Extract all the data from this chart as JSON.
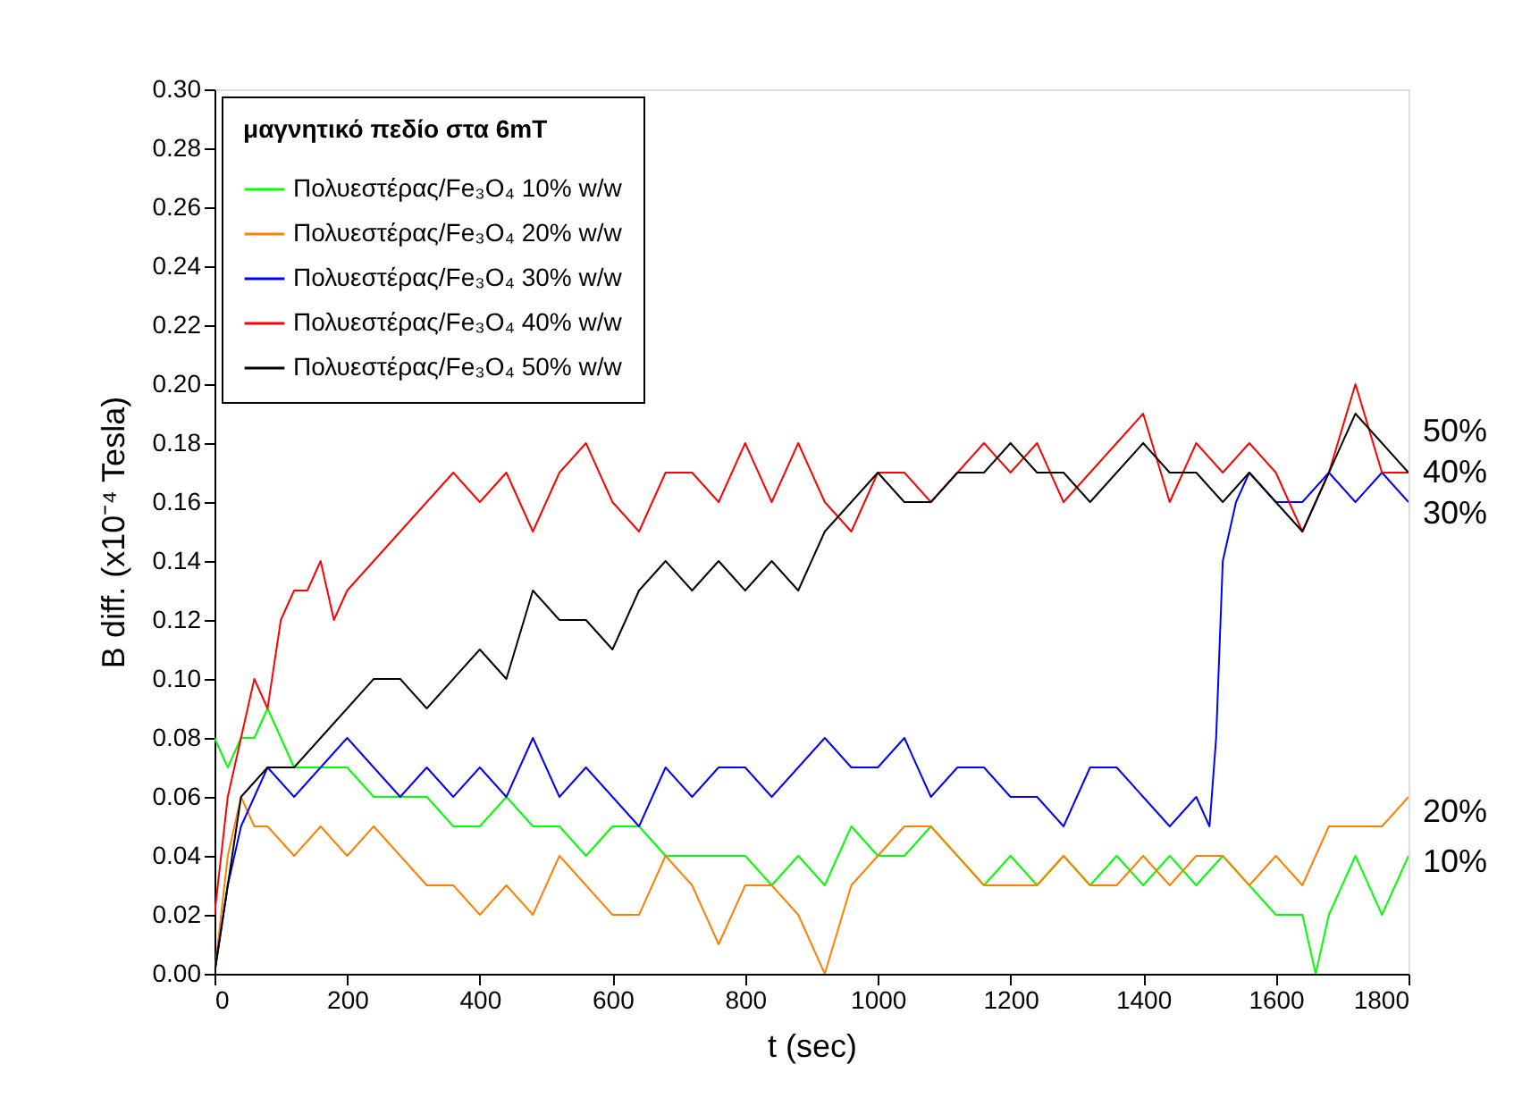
{
  "chart_data": {
    "type": "line",
    "xlabel": "t (sec)",
    "ylabel": "B diff. (x10⁻⁴ Tesla)",
    "legend_title": "μαγνητικό πεδίο στα 6mT",
    "legend": "top left",
    "grid": false,
    "line_style": "solid",
    "marker": "none",
    "xlim": [
      0,
      1800
    ],
    "xticks": [
      0,
      200,
      400,
      600,
      800,
      1000,
      1200,
      1400,
      1600,
      1800
    ],
    "ylim": [
      0,
      0.3
    ],
    "yticks": [
      {
        "value": 0,
        "label": "0.00"
      },
      {
        "value": 0.02,
        "label": "0.02"
      },
      {
        "value": 0.04,
        "label": "0.04"
      },
      {
        "value": 0.06,
        "label": "0.06"
      },
      {
        "value": 0.08,
        "label": "0.08"
      },
      {
        "value": 0.1,
        "label": "0.10"
      },
      {
        "value": 0.12,
        "label": "0.12"
      },
      {
        "value": 0.14,
        "label": "0.14"
      },
      {
        "value": 0.16,
        "label": "0.16"
      },
      {
        "value": 0.18,
        "label": "0.18"
      },
      {
        "value": 0.2,
        "label": "0.20"
      },
      {
        "value": 0.22,
        "label": "0.22"
      },
      {
        "value": 0.24,
        "label": "0.24"
      },
      {
        "value": 0.26,
        "label": "0.26"
      },
      {
        "value": 0.28,
        "label": "0.28"
      },
      {
        "value": 0.3,
        "label": "0.30"
      }
    ],
    "series": [
      {
        "name": "Πολυεστέρας/Fe₃O₄ 10% w/w",
        "color": "#00ff00",
        "x": [
          0,
          20,
          40,
          60,
          80,
          120,
          160,
          200,
          240,
          280,
          320,
          360,
          400,
          440,
          480,
          520,
          560,
          600,
          640,
          680,
          720,
          760,
          800,
          840,
          880,
          920,
          960,
          1000,
          1040,
          1080,
          1120,
          1160,
          1200,
          1240,
          1280,
          1320,
          1360,
          1400,
          1440,
          1480,
          1520,
          1560,
          1600,
          1640,
          1660,
          1680,
          1720,
          1760,
          1800
        ],
        "values": [
          0.08,
          0.07,
          0.08,
          0.08,
          0.09,
          0.07,
          0.07,
          0.07,
          0.06,
          0.06,
          0.06,
          0.05,
          0.05,
          0.06,
          0.05,
          0.05,
          0.04,
          0.05,
          0.05,
          0.04,
          0.04,
          0.04,
          0.04,
          0.03,
          0.04,
          0.03,
          0.05,
          0.04,
          0.04,
          0.05,
          0.04,
          0.03,
          0.04,
          0.03,
          0.04,
          0.03,
          0.04,
          0.03,
          0.04,
          0.03,
          0.04,
          0.03,
          0.02,
          0.02,
          0.0,
          0.02,
          0.04,
          0.02,
          0.04
        ]
      },
      {
        "name": "Πολυεστέρας/Fe₃O₄ 20% w/w",
        "color": "#ff8000",
        "x": [
          0,
          20,
          40,
          60,
          80,
          120,
          160,
          200,
          240,
          280,
          320,
          360,
          400,
          440,
          480,
          520,
          560,
          600,
          640,
          680,
          720,
          760,
          800,
          840,
          880,
          920,
          960,
          1000,
          1040,
          1080,
          1120,
          1160,
          1200,
          1240,
          1280,
          1320,
          1360,
          1400,
          1440,
          1480,
          1520,
          1560,
          1600,
          1640,
          1680,
          1720,
          1760,
          1800
        ],
        "values": [
          0.0,
          0.04,
          0.06,
          0.05,
          0.05,
          0.04,
          0.05,
          0.04,
          0.05,
          0.04,
          0.03,
          0.03,
          0.02,
          0.03,
          0.02,
          0.04,
          0.03,
          0.02,
          0.02,
          0.04,
          0.03,
          0.01,
          0.03,
          0.03,
          0.02,
          0.0,
          0.03,
          0.04,
          0.05,
          0.05,
          0.04,
          0.03,
          0.03,
          0.03,
          0.04,
          0.03,
          0.03,
          0.04,
          0.03,
          0.04,
          0.04,
          0.03,
          0.04,
          0.03,
          0.05,
          0.05,
          0.05,
          0.06
        ]
      },
      {
        "name": "Πολυεστέρας/Fe₃O₄ 30% w/w",
        "color": "#0000ff",
        "x": [
          0,
          20,
          40,
          60,
          80,
          120,
          160,
          200,
          240,
          280,
          320,
          360,
          400,
          440,
          480,
          520,
          560,
          600,
          640,
          680,
          720,
          760,
          800,
          840,
          880,
          920,
          960,
          1000,
          1040,
          1080,
          1120,
          1160,
          1200,
          1240,
          1280,
          1320,
          1360,
          1400,
          1440,
          1480,
          1500,
          1510,
          1520,
          1540,
          1560,
          1600,
          1640,
          1680,
          1720,
          1760,
          1800
        ],
        "values": [
          0.0,
          0.03,
          0.05,
          0.06,
          0.07,
          0.06,
          0.07,
          0.08,
          0.07,
          0.06,
          0.07,
          0.06,
          0.07,
          0.06,
          0.08,
          0.06,
          0.07,
          0.06,
          0.05,
          0.07,
          0.06,
          0.07,
          0.07,
          0.06,
          0.07,
          0.08,
          0.07,
          0.07,
          0.08,
          0.06,
          0.07,
          0.07,
          0.06,
          0.06,
          0.05,
          0.07,
          0.07,
          0.06,
          0.05,
          0.06,
          0.05,
          0.08,
          0.14,
          0.16,
          0.17,
          0.16,
          0.16,
          0.17,
          0.16,
          0.17,
          0.16
        ]
      },
      {
        "name": "Πολυεστέρας/Fe₃O₄ 40% w/w",
        "color": "#ff0000",
        "x": [
          0,
          20,
          40,
          60,
          80,
          100,
          120,
          140,
          160,
          180,
          200,
          240,
          280,
          320,
          360,
          400,
          440,
          480,
          520,
          560,
          600,
          640,
          680,
          720,
          760,
          800,
          840,
          880,
          920,
          960,
          1000,
          1040,
          1080,
          1120,
          1160,
          1200,
          1240,
          1280,
          1320,
          1360,
          1400,
          1440,
          1480,
          1520,
          1560,
          1600,
          1640,
          1680,
          1720,
          1760,
          1800
        ],
        "values": [
          0.02,
          0.06,
          0.08,
          0.1,
          0.09,
          0.12,
          0.13,
          0.13,
          0.14,
          0.12,
          0.13,
          0.14,
          0.15,
          0.16,
          0.17,
          0.16,
          0.17,
          0.15,
          0.17,
          0.18,
          0.16,
          0.15,
          0.17,
          0.17,
          0.16,
          0.18,
          0.16,
          0.18,
          0.16,
          0.15,
          0.17,
          0.17,
          0.16,
          0.17,
          0.18,
          0.17,
          0.18,
          0.16,
          0.17,
          0.18,
          0.19,
          0.16,
          0.18,
          0.17,
          0.18,
          0.17,
          0.15,
          0.17,
          0.2,
          0.17,
          0.17
        ]
      },
      {
        "name": "Πολυεστέρας/Fe₃O₄ 50% w/w",
        "color": "#000000",
        "x": [
          0,
          40,
          80,
          120,
          160,
          200,
          240,
          280,
          320,
          360,
          400,
          440,
          480,
          520,
          560,
          600,
          640,
          680,
          720,
          760,
          800,
          840,
          880,
          920,
          960,
          1000,
          1040,
          1080,
          1120,
          1160,
          1200,
          1240,
          1280,
          1320,
          1360,
          1400,
          1440,
          1480,
          1520,
          1560,
          1600,
          1640,
          1680,
          1720,
          1760,
          1800
        ],
        "values": [
          0.0,
          0.06,
          0.07,
          0.07,
          0.08,
          0.09,
          0.1,
          0.1,
          0.09,
          0.1,
          0.11,
          0.1,
          0.13,
          0.12,
          0.12,
          0.11,
          0.13,
          0.14,
          0.13,
          0.14,
          0.13,
          0.14,
          0.13,
          0.15,
          0.16,
          0.17,
          0.16,
          0.16,
          0.17,
          0.17,
          0.18,
          0.17,
          0.17,
          0.16,
          0.17,
          0.18,
          0.17,
          0.17,
          0.16,
          0.17,
          0.16,
          0.15,
          0.17,
          0.19,
          0.18,
          0.17
        ]
      }
    ],
    "annotations": [
      "50%",
      "40%",
      "30%",
      "20%",
      "10%"
    ]
  }
}
